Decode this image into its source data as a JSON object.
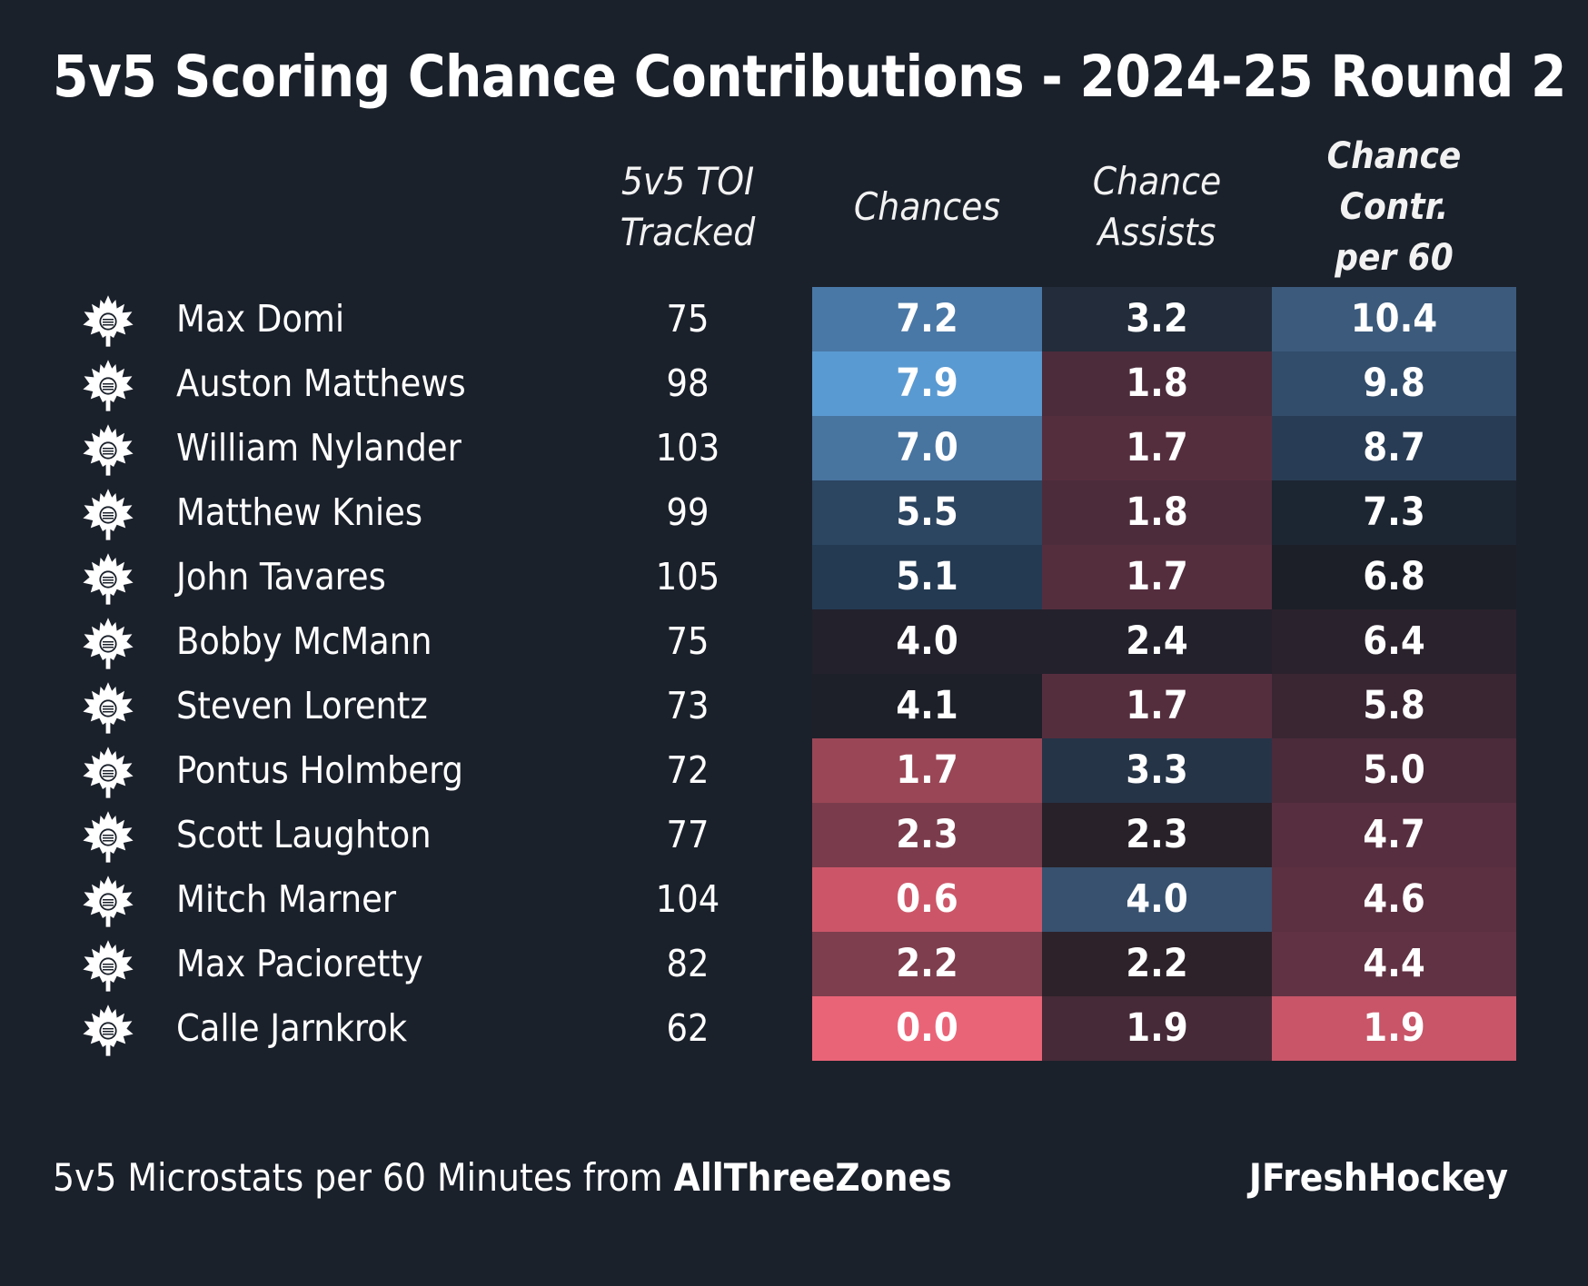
{
  "title": "5v5 Scoring Chance Contributions - 2024-25 Round 2",
  "headers": {
    "toi": "5v5 TOI\nTracked",
    "chances": "Chances",
    "assists": "Chance\nAssists",
    "contr": "Chance Contr.\nper 60"
  },
  "footer": {
    "source_prefix": "5v5 Microstats per 60 Minutes from ",
    "source_name": "AllThreeZones",
    "credit": "JFreshHockey"
  },
  "logo_icon": "maple-leafs-logo-icon",
  "colors": {
    "background": "#1b212b",
    "high": "#5b9bd5",
    "low": "#e8647a"
  },
  "chart_data": {
    "type": "table",
    "columns": [
      "5v5 TOI Tracked",
      "Chances",
      "Chance Assists",
      "Chance Contr. per 60"
    ],
    "rows": [
      {
        "player": "Max Domi",
        "toi": "75",
        "chances": "7.2",
        "assists": "3.2",
        "contr": "10.4",
        "colors": [
          "#4a78a6",
          "#222c3a",
          "#3b5a7c"
        ]
      },
      {
        "player": "Auston Matthews",
        "toi": "98",
        "chances": "7.9",
        "assists": "1.8",
        "contr": "9.8",
        "colors": [
          "#5a9ad2",
          "#4c2c3b",
          "#324d6b"
        ]
      },
      {
        "player": "William Nylander",
        "toi": "103",
        "chances": "7.0",
        "assists": "1.7",
        "contr": "8.7",
        "colors": [
          "#4874a0",
          "#552e3e",
          "#283c55"
        ]
      },
      {
        "player": "Matthew Knies",
        "toi": "99",
        "chances": "5.5",
        "assists": "1.8",
        "contr": "7.3",
        "colors": [
          "#2c4560",
          "#4c2c3b",
          "#1c2532"
        ]
      },
      {
        "player": "John Tavares",
        "toi": "105",
        "chances": "5.1",
        "assists": "1.7",
        "contr": "6.8",
        "colors": [
          "#243a52",
          "#552e3e",
          "#1c1f28"
        ]
      },
      {
        "player": "Bobby McMann",
        "toi": "75",
        "chances": "4.0",
        "assists": "2.4",
        "contr": "6.4",
        "colors": [
          "#22212c",
          "#23212c",
          "#2a222d"
        ]
      },
      {
        "player": "Steven Lorentz",
        "toi": "73",
        "chances": "4.1",
        "assists": "1.7",
        "contr": "5.8",
        "colors": [
          "#1d2029",
          "#552e3e",
          "#3a2633"
        ]
      },
      {
        "player": "Pontus Holmberg",
        "toi": "72",
        "chances": "1.7",
        "assists": "3.3",
        "contr": "5.0",
        "colors": [
          "#9a4656",
          "#263448",
          "#4b2a3a"
        ]
      },
      {
        "player": "Scott Laughton",
        "toi": "77",
        "chances": "2.3",
        "assists": "2.3",
        "contr": "4.7",
        "colors": [
          "#7a3c4c",
          "#282129",
          "#572e3f"
        ]
      },
      {
        "player": "Mitch Marner",
        "toi": "104",
        "chances": "0.6",
        "assists": "4.0",
        "contr": "4.6",
        "colors": [
          "#cc5668",
          "#37516f",
          "#5c3041"
        ]
      },
      {
        "player": "Max Pacioretty",
        "toi": "82",
        "chances": "2.2",
        "assists": "2.2",
        "contr": "4.4",
        "colors": [
          "#7e3e4d",
          "#2d2229",
          "#613243"
        ]
      },
      {
        "player": "Calle Jarnkrok",
        "toi": "62",
        "chances": "0.0",
        "assists": "1.9",
        "contr": "1.9",
        "colors": [
          "#ea6478",
          "#462a37",
          "#c85568"
        ]
      }
    ]
  }
}
